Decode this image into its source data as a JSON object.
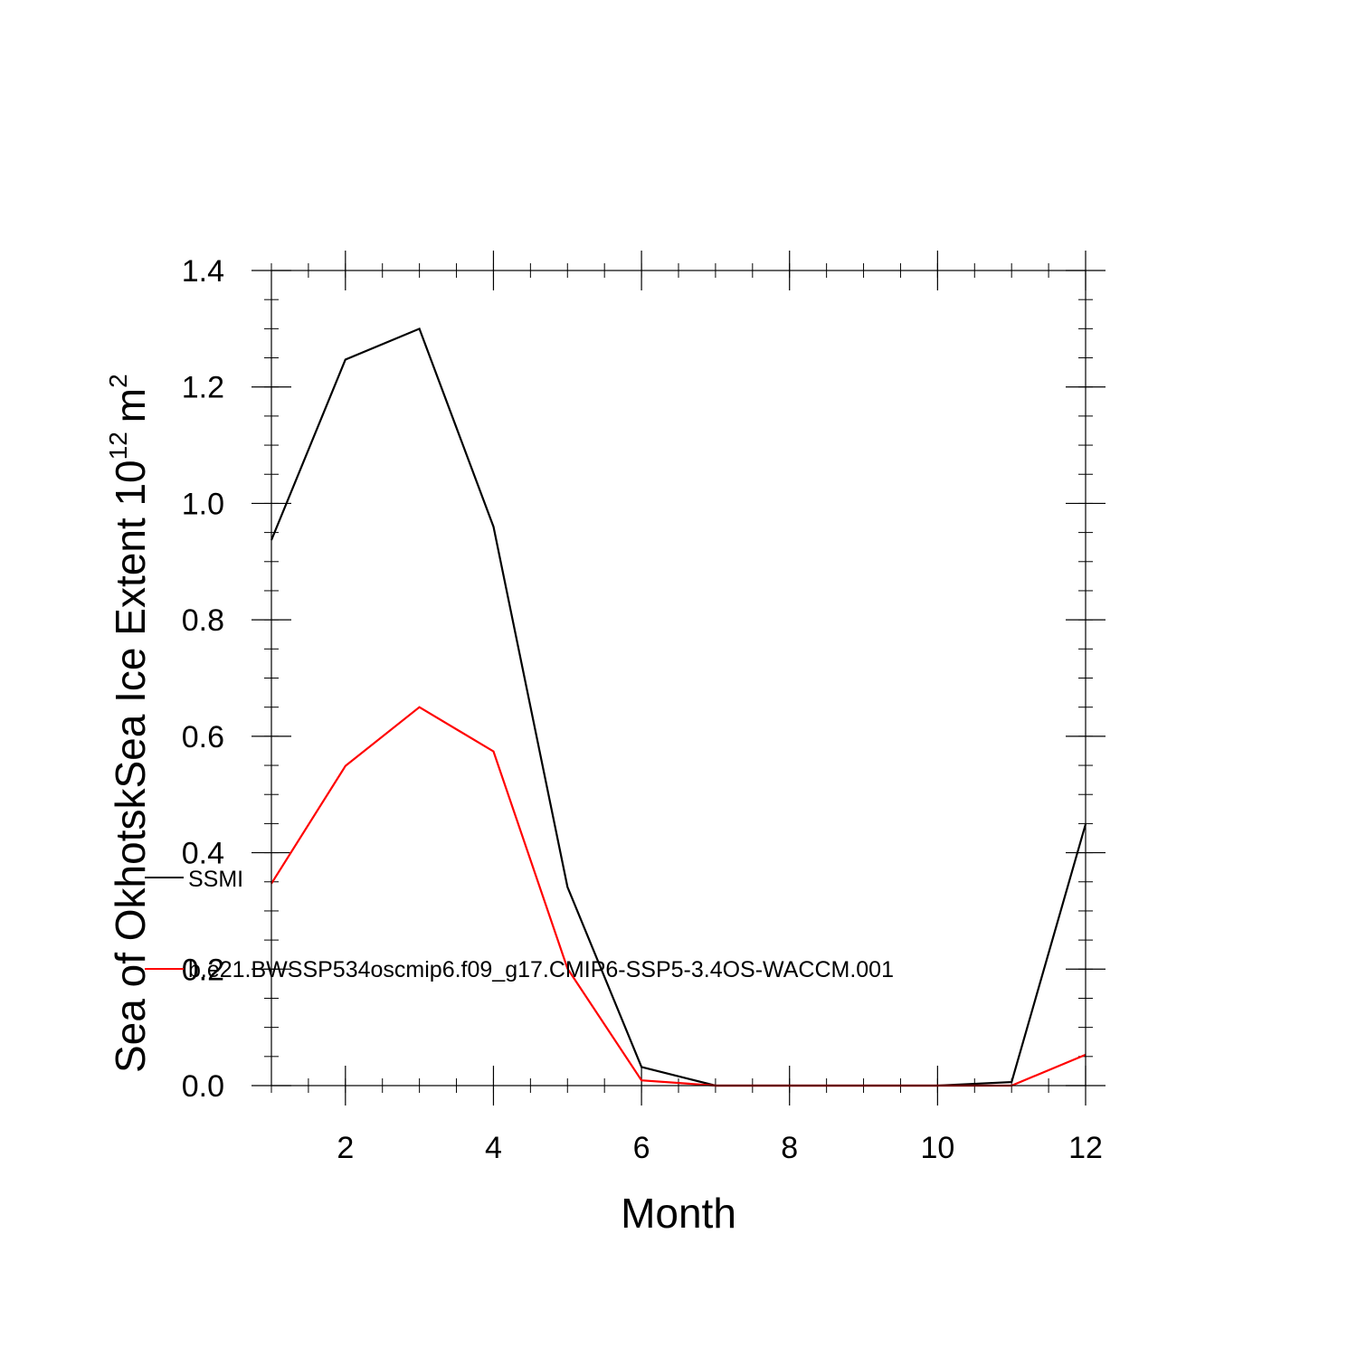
{
  "chart_data": {
    "type": "line",
    "title": "",
    "xlabel": "Month",
    "ylabel": "Sea of OkhotskSea Ice Extent 10",
    "ylabel_sup": "12",
    "ylabel_unit": "m",
    "ylabel_unit_sup": "2",
    "xlim": [
      1,
      12
    ],
    "ylim": [
      0,
      1.4
    ],
    "xticks": [
      2,
      4,
      6,
      8,
      10,
      12
    ],
    "xtick_labels": [
      "2",
      "4",
      "6",
      "8",
      "10",
      "12"
    ],
    "yticks": [
      0,
      0.2,
      0.4,
      0.6,
      0.8,
      1.0,
      1.2,
      1.4
    ],
    "ytick_labels": [
      "0.0",
      "0.2",
      "0.4",
      "0.6",
      "0.8",
      "1.0",
      "1.2",
      "1.4"
    ],
    "grid": false,
    "legend_position": "left-inside",
    "x": [
      1,
      2,
      3,
      4,
      5,
      6,
      7,
      8,
      9,
      10,
      11,
      12
    ],
    "series": [
      {
        "name": "SSMI",
        "color": "#000000",
        "values": [
          0.937,
          1.247,
          1.3,
          0.96,
          0.341,
          0.032,
          0.0,
          0.0,
          0.0,
          0.0,
          0.006,
          0.449
        ]
      },
      {
        "name": "b.e21.BWSSP534oscmip6.f09_g17.CMIP6-SSP5-3.4OS-WACCM.001",
        "color": "#ff0000",
        "values": [
          0.347,
          0.549,
          0.65,
          0.574,
          0.201,
          0.009,
          0.0,
          0.0,
          0.0,
          0.0,
          0.0,
          0.053
        ]
      }
    ]
  }
}
